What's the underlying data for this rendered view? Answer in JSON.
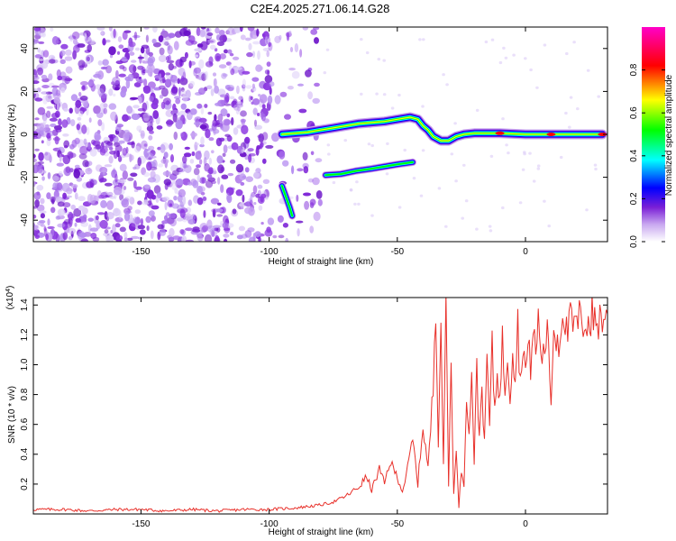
{
  "chart_data": [
    {
      "type": "heatmap",
      "title": "C2E4.2025.271.06.14.G28",
      "xlabel": "Height of straight line (km)",
      "ylabel": "Frequency (Hz)",
      "xlim": [
        -192,
        32
      ],
      "ylim": [
        -50,
        50
      ],
      "x_ticks": [
        -150,
        -100,
        -50,
        0
      ],
      "y_ticks": [
        -40,
        -20,
        0,
        20,
        40
      ],
      "x_tick_labels": [
        "-150",
        "-100",
        "-50",
        "0"
      ],
      "y_tick_labels": [
        "-40",
        "-20",
        "0",
        "20",
        "40"
      ],
      "colorbar": {
        "label": "Normalized spectral amplitude",
        "range": [
          0,
          1
        ],
        "ticks": [
          0.0,
          0.2,
          0.4,
          0.6,
          0.8
        ],
        "tick_labels": [
          "0.0",
          "0.2",
          "0.4",
          "0.6",
          "0.8"
        ],
        "colors": [
          "#ffffff",
          "#7a1fd6",
          "#0000ff",
          "#00ffff",
          "#00ff00",
          "#ffff00",
          "#ff0000",
          "#ff00c8"
        ]
      },
      "noise_region_x": [
        -192,
        -80
      ],
      "traces": [
        {
          "name": "main-branch",
          "points": [
            [
              -95,
              0
            ],
            [
              -90,
              0.5
            ],
            [
              -85,
              1
            ],
            [
              -80,
              2
            ],
            [
              -75,
              3
            ],
            [
              -70,
              4
            ],
            [
              -65,
              5
            ],
            [
              -60,
              5.5
            ],
            [
              -55,
              6
            ],
            [
              -50,
              7
            ],
            [
              -45,
              8
            ],
            [
              -42,
              7
            ],
            [
              -40,
              4
            ],
            [
              -38,
              2
            ],
            [
              -36,
              -1
            ],
            [
              -33,
              -3
            ],
            [
              -30,
              -3
            ],
            [
              -27,
              -1
            ],
            [
              -24,
              0
            ],
            [
              -20,
              0.5
            ],
            [
              -10,
              0.5
            ],
            [
              0,
              0
            ],
            [
              10,
              0
            ],
            [
              20,
              0
            ],
            [
              30,
              0
            ]
          ]
        },
        {
          "name": "lower-branch",
          "points": [
            [
              -78,
              -19
            ],
            [
              -72,
              -18.5
            ],
            [
              -66,
              -17
            ],
            [
              -60,
              -16
            ],
            [
              -55,
              -15
            ],
            [
              -50,
              -14
            ],
            [
              -44,
              -13
            ]
          ]
        },
        {
          "name": "descending-streak",
          "points": [
            [
              -95,
              -24
            ],
            [
              -93.5,
              -29
            ],
            [
              -92,
              -34
            ],
            [
              -91,
              -38
            ]
          ]
        }
      ]
    },
    {
      "type": "line",
      "xlabel": "Height of straight line (km)",
      "ylabel": "SNR (10 * v/v)",
      "y_scale_label": "(x10^4)",
      "xlim": [
        -192,
        32
      ],
      "ylim": [
        0,
        1.45
      ],
      "x_ticks": [
        -150,
        -100,
        -50,
        0
      ],
      "y_ticks": [
        0.2,
        0.4,
        0.6,
        0.8,
        1.0,
        1.2,
        1.4
      ],
      "x_tick_labels": [
        "-150",
        "-100",
        "-50",
        "0"
      ],
      "y_tick_labels": [
        "0.2",
        "0.4",
        "0.6",
        "0.8",
        "1.0",
        "1.2",
        "1.4"
      ],
      "color": "#e8302a",
      "series": [
        {
          "name": "SNR",
          "x": [
            -192,
            -180,
            -170,
            -160,
            -150,
            -140,
            -130,
            -120,
            -110,
            -100,
            -90,
            -80,
            -75,
            -70,
            -65,
            -62,
            -60,
            -57,
            -55,
            -53,
            -50,
            -48,
            -46,
            -44,
            -42,
            -40,
            -38,
            -36,
            -35,
            -34,
            -33,
            -32,
            -31,
            -30,
            -29,
            -28,
            -27,
            -26,
            -25,
            -24,
            -23,
            -22,
            -21,
            -20,
            -19,
            -18,
            -17,
            -16,
            -15,
            -14,
            -13,
            -12,
            -11,
            -10,
            -9,
            -8,
            -7,
            -6,
            -5,
            -4,
            -3,
            -2,
            -1,
            0,
            1,
            2,
            3,
            4,
            5,
            6,
            7,
            8,
            9,
            10,
            11,
            12,
            13,
            14,
            15,
            16,
            17,
            18,
            19,
            20,
            21,
            22,
            23,
            24,
            25,
            26,
            27,
            28,
            29,
            30,
            31,
            32
          ],
          "y": [
            0.03,
            0.03,
            0.02,
            0.03,
            0.03,
            0.02,
            0.03,
            0.02,
            0.03,
            0.03,
            0.04,
            0.06,
            0.08,
            0.12,
            0.18,
            0.25,
            0.16,
            0.3,
            0.2,
            0.35,
            0.25,
            0.15,
            0.3,
            0.5,
            0.2,
            0.6,
            0.3,
            0.85,
            1.45,
            0.5,
            1.3,
            0.3,
            1.45,
            0.2,
            1.0,
            0.15,
            0.4,
            0.05,
            0.3,
            0.2,
            0.85,
            0.5,
            1.0,
            0.35,
            0.95,
            0.5,
            0.9,
            0.45,
            1.05,
            0.6,
            1.1,
            0.7,
            1.0,
            0.75,
            1.15,
            0.85,
            1.1,
            0.8,
            1.15,
            0.9,
            1.3,
            0.85,
            1.2,
            0.95,
            1.1,
            1.0,
            1.25,
            1.05,
            1.3,
            1.1,
            1.05,
            1.2,
            1.15,
            0.75,
            1.25,
            1.2,
            1.15,
            1.3,
            1.4,
            1.2,
            1.25,
            1.3,
            1.22,
            1.28,
            1.3,
            1.25,
            1.32,
            1.3,
            1.27,
            1.33,
            1.3,
            1.28,
            1.32,
            1.3,
            1.35,
            1.34
          ]
        }
      ]
    }
  ]
}
